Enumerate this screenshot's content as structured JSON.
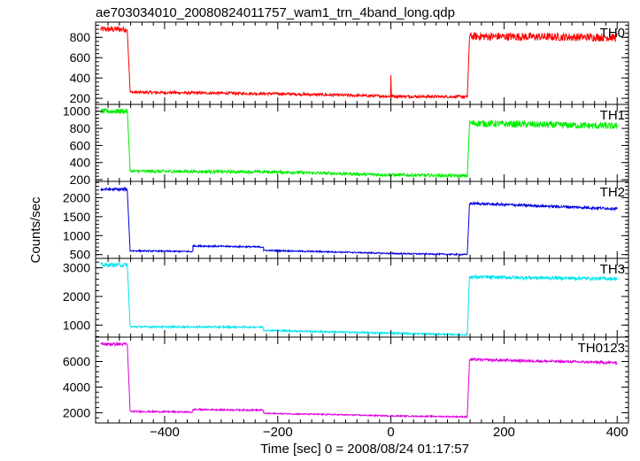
{
  "title": "ae703034010_20080824011757_wam1_trn_4band_long.qdp",
  "chart_data": {
    "type": "line",
    "xlabel": "Time [sec] 0 = 2008/08/24 01:17:57",
    "ylabel": "Counts/sec",
    "xlim": [
      -522,
      420
    ],
    "xticks": [
      -400,
      -200,
      0,
      200,
      400
    ],
    "grid": false,
    "panels": [
      {
        "name": "TH0",
        "color": "#ff0000",
        "ylim": [
          140,
          950
        ],
        "yticks": [
          200,
          400,
          600,
          800
        ],
        "segments": [
          {
            "x": [
              -513,
              -466
            ],
            "y": [
              880,
              880
            ],
            "noise": 30
          },
          {
            "x": [
              -461,
              -200,
              0,
              135
            ],
            "y": [
              260,
              245,
              220,
              215
            ],
            "noise": 14
          },
          {
            "x": [
              139,
              400
            ],
            "y": [
              810,
              800
            ],
            "noise": 40
          }
        ],
        "spikes": [
          {
            "x": 0,
            "y": 430
          }
        ]
      },
      {
        "name": "TH1",
        "color": "#00ee00",
        "ylim": [
          180,
          1080
        ],
        "yticks": [
          200,
          400,
          600,
          800,
          1000
        ],
        "segments": [
          {
            "x": [
              -513,
              -466
            ],
            "y": [
              1000,
              1000
            ],
            "noise": 30
          },
          {
            "x": [
              -461,
              -200,
              0,
              135
            ],
            "y": [
              300,
              290,
              255,
              245
            ],
            "noise": 18
          },
          {
            "x": [
              139,
              400
            ],
            "y": [
              860,
              825
            ],
            "noise": 40
          }
        ]
      },
      {
        "name": "TH2",
        "color": "#0000dd",
        "ylim": [
          400,
          2430
        ],
        "yticks": [
          500,
          1000,
          1500,
          2000
        ],
        "segments": [
          {
            "x": [
              -513,
              -466
            ],
            "y": [
              2220,
              2220
            ],
            "noise": 40
          },
          {
            "x": [
              -461,
              -350
            ],
            "y": [
              600,
              580
            ],
            "noise": 18
          },
          {
            "x": [
              -350,
              -225
            ],
            "y": [
              730,
              700
            ],
            "noise": 20
          },
          {
            "x": [
              -225,
              -100,
              0,
              135
            ],
            "y": [
              610,
              570,
              530,
              500
            ],
            "noise": 18
          },
          {
            "x": [
              139,
              400
            ],
            "y": [
              1850,
              1710
            ],
            "noise": 35
          }
        ]
      },
      {
        "name": "TH3",
        "color": "#00e5ee",
        "ylim": [
          580,
          3330
        ],
        "yticks": [
          1000,
          2000,
          3000
        ],
        "segments": [
          {
            "x": [
              -513,
              -466
            ],
            "y": [
              3100,
              3100
            ],
            "noise": 70
          },
          {
            "x": [
              -461,
              -225
            ],
            "y": [
              940,
              930
            ],
            "noise": 30
          },
          {
            "x": [
              -225,
              -100,
              0,
              135
            ],
            "y": [
              820,
              760,
              720,
              660
            ],
            "noise": 30
          },
          {
            "x": [
              139,
              400
            ],
            "y": [
              2680,
              2620
            ],
            "noise": 60
          }
        ]
      },
      {
        "name": "TH0123",
        "color": "#dd00dd",
        "ylim": [
          1200,
          7900
        ],
        "yticks": [
          2000,
          4000,
          6000
        ],
        "segments": [
          {
            "x": [
              -513,
              -466
            ],
            "y": [
              7350,
              7350
            ],
            "noise": 120
          },
          {
            "x": [
              -461,
              -350
            ],
            "y": [
              2100,
              2050
            ],
            "noise": 60
          },
          {
            "x": [
              -350,
              -225
            ],
            "y": [
              2250,
              2200
            ],
            "noise": 60
          },
          {
            "x": [
              -225,
              -100,
              0,
              135
            ],
            "y": [
              1950,
              1850,
              1750,
              1680
            ],
            "noise": 50
          },
          {
            "x": [
              139,
              400
            ],
            "y": [
              6150,
              5900
            ],
            "noise": 100
          }
        ]
      }
    ]
  }
}
